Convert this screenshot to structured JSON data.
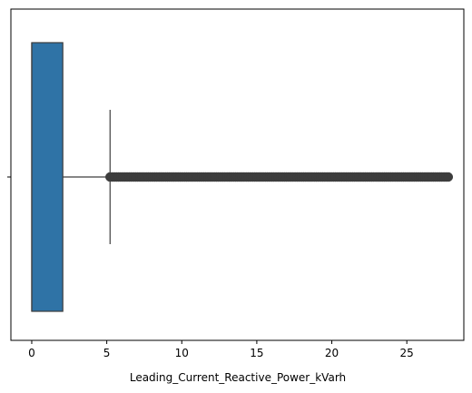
{
  "chart_data": {
    "type": "boxplot",
    "orientation": "horizontal",
    "title": "",
    "xlabel": "Leading_Current_Reactive_Power_kVarh",
    "ylabel": "",
    "xlim": [
      -1.39,
      28.8
    ],
    "xticks": [
      0,
      5,
      10,
      15,
      20,
      25
    ],
    "xtick_labels": [
      "0",
      "5",
      "10",
      "15",
      "20",
      "25"
    ],
    "grid": false,
    "series": [
      {
        "min": 0.0,
        "q1": 0.0,
        "median": 0.0,
        "q3": 2.07,
        "whisker_high": 5.22,
        "outliers_range": [
          5.22,
          27.76
        ],
        "color": "#2f73a6"
      }
    ]
  }
}
